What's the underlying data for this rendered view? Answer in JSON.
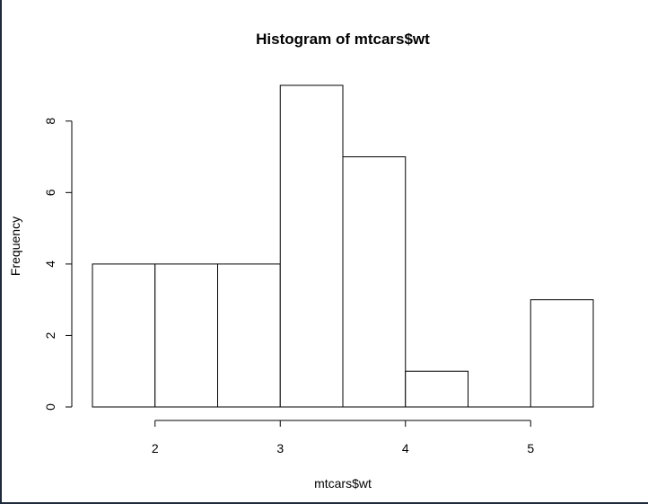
{
  "chart_data": {
    "type": "bar",
    "title": "Histogram of mtcars$wt",
    "xlabel": "mtcars$wt",
    "ylabel": "Frequency",
    "bins": [
      {
        "start": 1.5,
        "end": 2.0,
        "count": 4
      },
      {
        "start": 2.0,
        "end": 2.5,
        "count": 4
      },
      {
        "start": 2.5,
        "end": 3.0,
        "count": 4
      },
      {
        "start": 3.0,
        "end": 3.5,
        "count": 9
      },
      {
        "start": 3.5,
        "end": 4.0,
        "count": 7
      },
      {
        "start": 4.0,
        "end": 4.5,
        "count": 1
      },
      {
        "start": 4.5,
        "end": 5.0,
        "count": 0
      },
      {
        "start": 5.0,
        "end": 5.5,
        "count": 3
      }
    ],
    "x_ticks": [
      "2",
      "3",
      "4",
      "5"
    ],
    "y_ticks": [
      "0",
      "2",
      "4",
      "6",
      "8"
    ],
    "xlim": [
      1.5,
      5.5
    ],
    "ylim": [
      0,
      9
    ],
    "grid": false,
    "colors": {
      "bar_fill": "#ffffff",
      "bar_stroke": "#000000"
    }
  }
}
